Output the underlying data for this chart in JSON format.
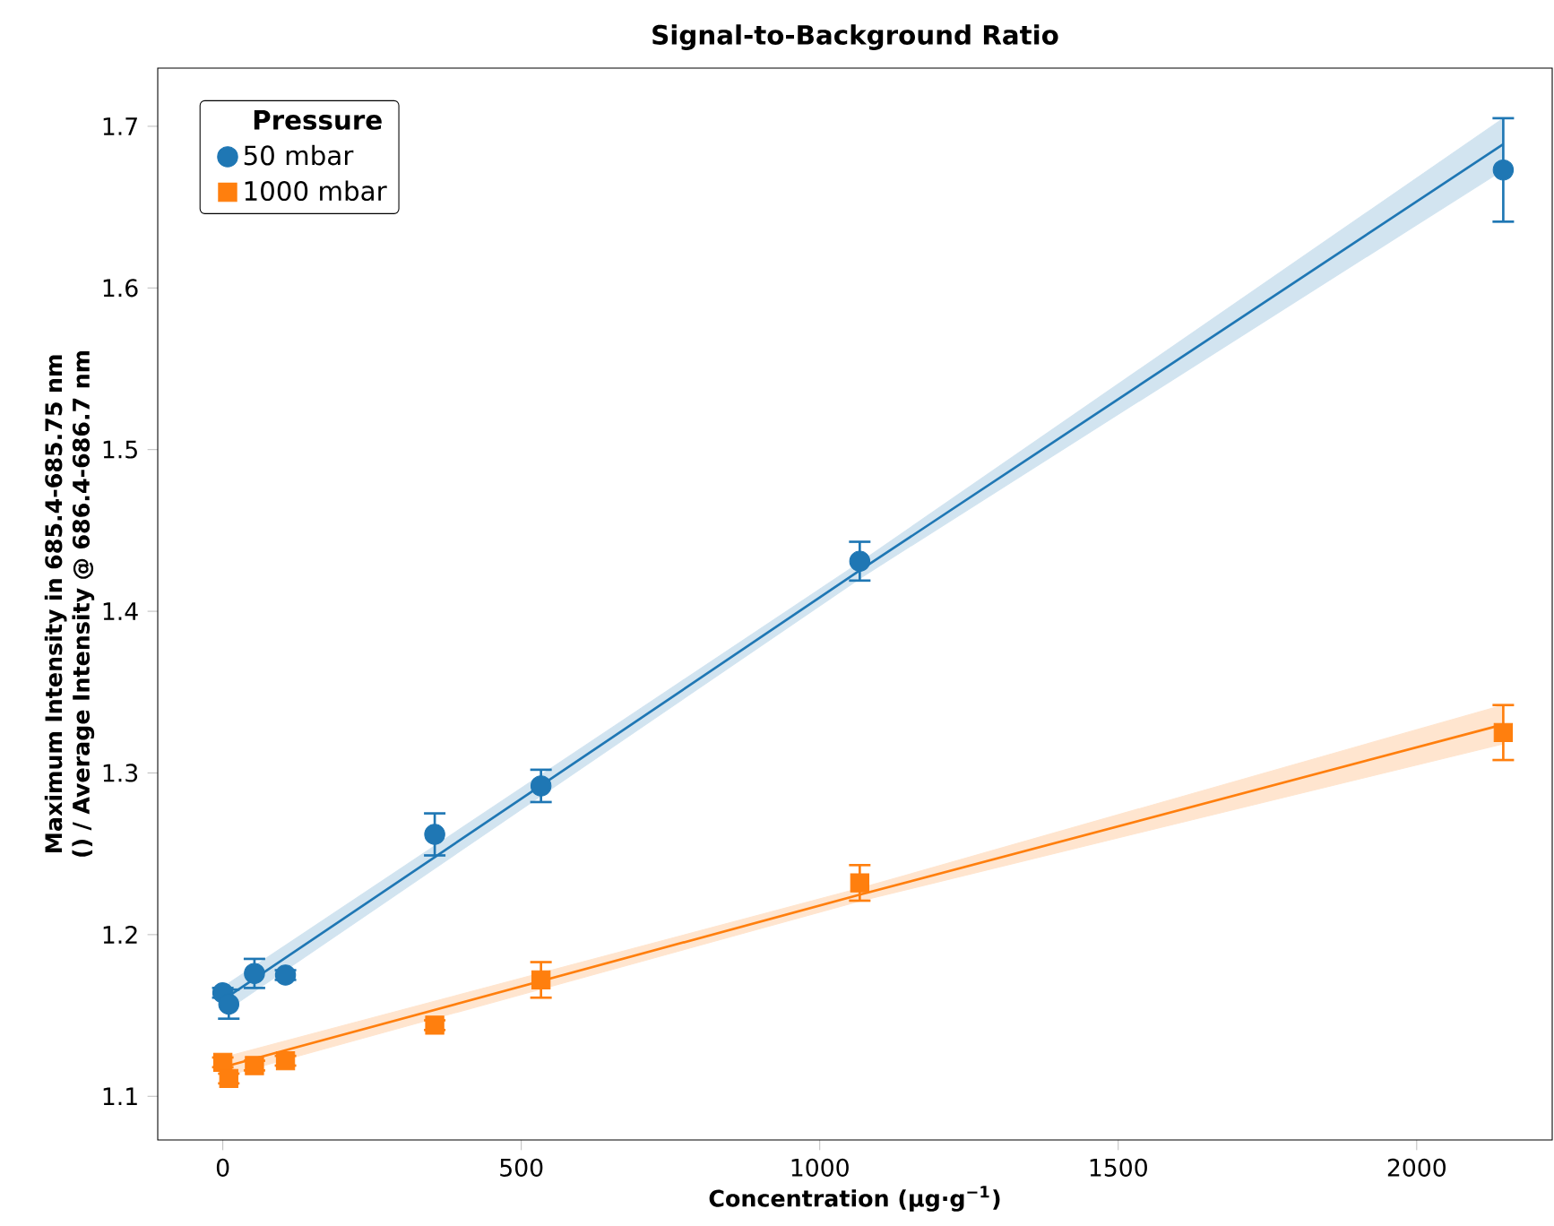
{
  "chart_data": {
    "type": "scatter",
    "title": "Signal-to-Background Ratio",
    "xlabel": "Concentration (µg·g$^{−1}$)",
    "ylabel": "Maximum Intensity in 685.4-685.75 nm () / Average Intensity @ 686.4-686.7 nm",
    "legend_title": "Pressure",
    "legend": "top left",
    "xlim": [
      -109,
      2227
    ],
    "ylim": [
      1.073,
      1.736
    ],
    "xticks": [
      0,
      500,
      1000,
      1500,
      2000
    ],
    "yticks": [
      1.1,
      1.2,
      1.3,
      1.4,
      1.5,
      1.6,
      1.7
    ],
    "series": [
      {
        "type": "line",
        "color": "#1f77b4",
        "marker": "none",
        "x": [
          10,
          1070,
          2145
        ],
        "values": [
          1.162,
          1.426,
          1.689
        ],
        "lower": [
          1.154,
          1.421,
          1.673
        ],
        "upper": [
          1.17,
          1.431,
          1.705
        ]
      },
      {
        "type": "line",
        "color": "#ff7f0e",
        "marker": "none",
        "x": [
          10,
          1070,
          2145
        ],
        "values": [
          1.119,
          1.225,
          1.33
        ],
        "lower": [
          1.113,
          1.221,
          1.318
        ],
        "upper": [
          1.125,
          1.229,
          1.342
        ]
      },
      {
        "name": "50 mbar",
        "color": "#1f77b4",
        "marker": "circle",
        "x": [
          0,
          10,
          53,
          105,
          355,
          533,
          1067,
          2145
        ],
        "values": [
          1.164,
          1.157,
          1.176,
          1.175,
          1.262,
          1.292,
          1.431,
          1.673
        ],
        "errors": [
          0.003,
          0.009,
          0.009,
          0.003,
          0.013,
          0.01,
          0.012,
          0.032
        ]
      },
      {
        "name": "1000 mbar",
        "color": "#ff7f0e",
        "marker": "square",
        "x": [
          0,
          10,
          53,
          105,
          355,
          533,
          1067,
          2145
        ],
        "values": [
          1.121,
          1.111,
          1.119,
          1.122,
          1.144,
          1.172,
          1.232,
          1.325
        ],
        "errors": [
          0.003,
          0.003,
          0.003,
          0.003,
          0.003,
          0.011,
          0.011,
          0.017
        ]
      }
    ]
  }
}
